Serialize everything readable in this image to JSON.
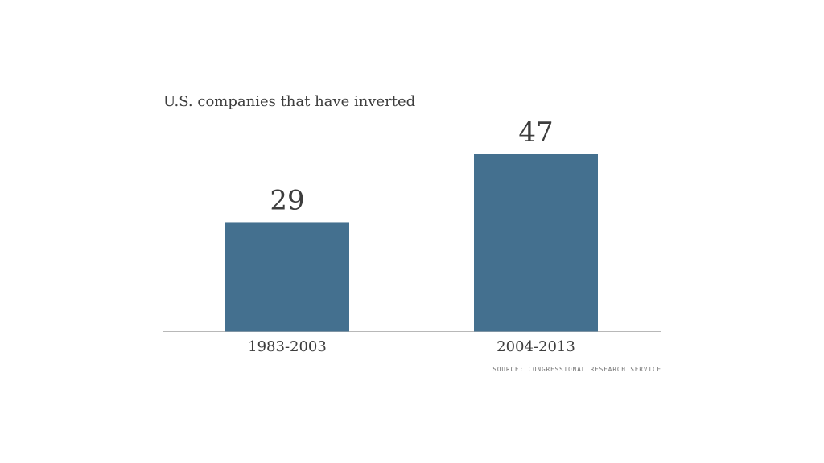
{
  "chart_data": {
    "type": "bar",
    "title": "U.S. companies that have inverted",
    "categories": [
      "1983-2003",
      "2004-2013"
    ],
    "values": [
      29,
      47
    ],
    "data_labels": [
      "29",
      "47"
    ],
    "xlabel": "",
    "ylabel": "",
    "ylim": [
      0,
      47
    ],
    "grid": false,
    "legend": "none",
    "source": "SOURCE: CONGRESSIONAL RESEARCH SERVICE",
    "colors": {
      "bar": "#44708f",
      "axis": "#b8b8b8",
      "text": "#3d3d3d"
    }
  }
}
